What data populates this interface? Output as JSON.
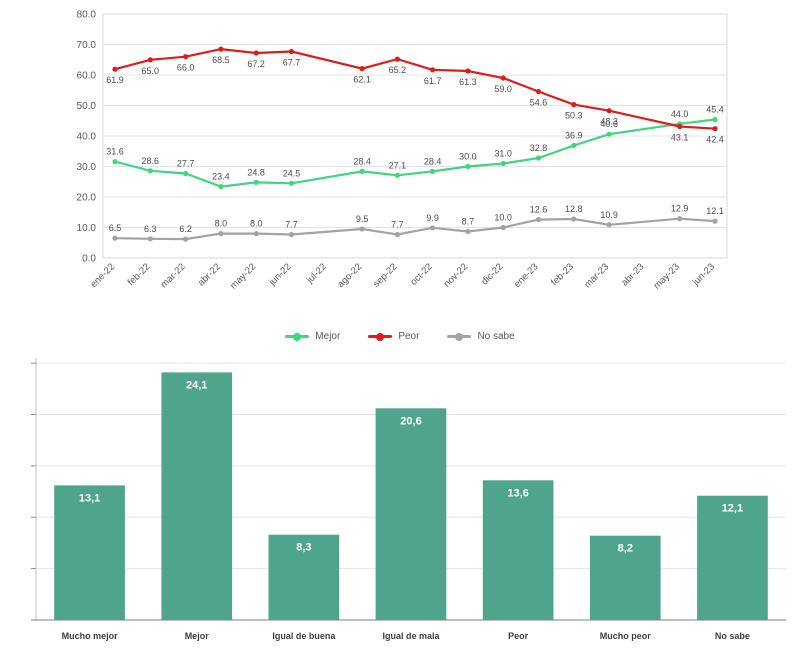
{
  "page": {
    "background": "#ffffff"
  },
  "chart_data": [
    {
      "type": "line",
      "title": "",
      "x": [
        "ene-22",
        "feb-22",
        "mar-22",
        "abr-22",
        "may-22",
        "jun-22",
        "jul-22",
        "ago-22",
        "sep-22",
        "oct-22",
        "nov-22",
        "dic-22",
        "ene-23",
        "feb-23",
        "mar-23",
        "abr-23",
        "may-23",
        "jun-23"
      ],
      "series": [
        {
          "name": "Mejor",
          "color": "#3fd67f",
          "label_position": "above",
          "values": [
            31.6,
            28.6,
            27.7,
            23.4,
            24.8,
            24.5,
            null,
            28.4,
            27.1,
            28.4,
            30.0,
            31.0,
            32.8,
            36.9,
            40.6,
            null,
            44.0,
            45.4
          ]
        },
        {
          "name": "Peor",
          "color": "#e01b1b",
          "label_position": "below",
          "values": [
            61.9,
            65.0,
            66.0,
            68.5,
            67.2,
            67.7,
            null,
            62.1,
            65.2,
            61.7,
            61.3,
            59.0,
            54.6,
            50.3,
            48.3,
            null,
            43.1,
            42.4
          ]
        },
        {
          "name": "No sabe",
          "color": "#a3a3a3",
          "label_position": "above",
          "values": [
            6.5,
            6.3,
            6.2,
            8.0,
            8.0,
            7.7,
            null,
            9.5,
            7.7,
            9.9,
            8.7,
            10.0,
            12.6,
            12.8,
            10.9,
            null,
            12.9,
            12.1
          ]
        }
      ],
      "ylim": [
        0,
        80
      ],
      "ytick_step": 10,
      "ytick_labels": [
        "0.0",
        "10.0",
        "20.0",
        "30.0",
        "40.0",
        "50.0",
        "60.0",
        "70.0",
        "80.0"
      ],
      "grid": true,
      "legend_position": "bottom"
    },
    {
      "type": "bar",
      "title": "",
      "categories": [
        "Mucho mejor",
        "Mejor",
        "Igual de buena",
        "Igual de mala",
        "Peor",
        "Mucho peor",
        "No sabe"
      ],
      "values": [
        13.1,
        24.1,
        8.3,
        20.6,
        13.6,
        8.2,
        12.1
      ],
      "value_labels": [
        "13,1",
        "24,1",
        "8,3",
        "20,6",
        "13,6",
        "8,2",
        "12,1"
      ],
      "bar_color": "#4fa58b",
      "value_label_color": "#ffffff",
      "category_label_color": "#404040",
      "ylim": [
        0,
        25.5
      ],
      "gridline_step": 5,
      "grid": true,
      "legend_position": "none"
    }
  ]
}
